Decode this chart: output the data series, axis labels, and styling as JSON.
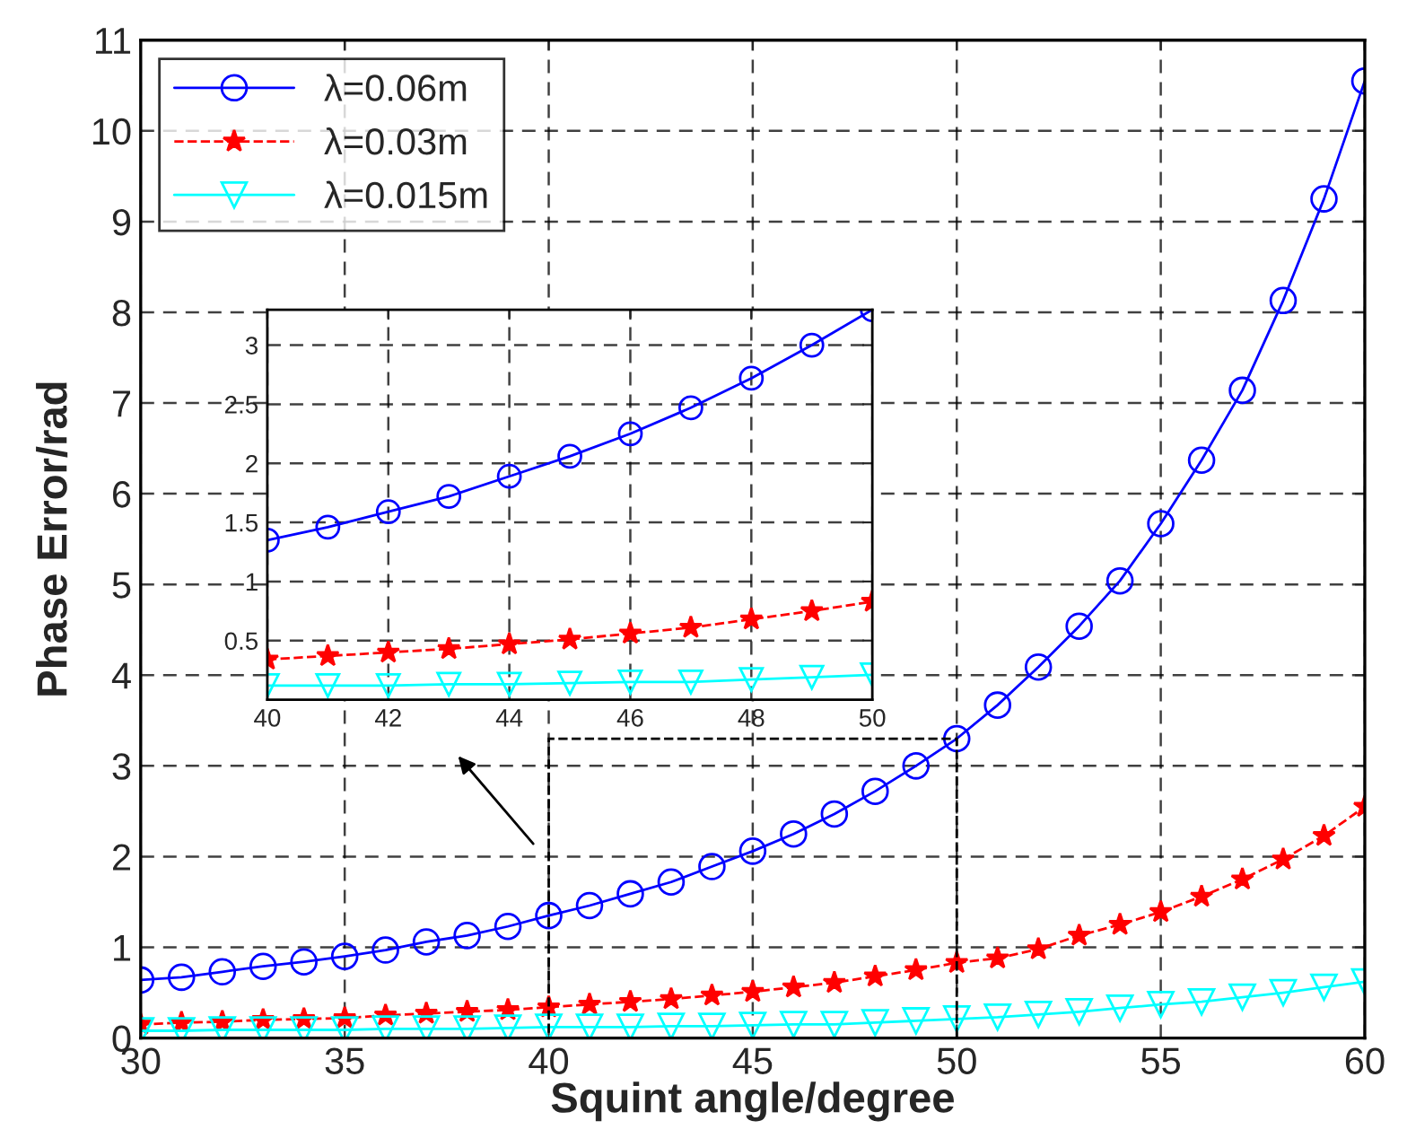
{
  "chart_data": [
    {
      "type": "line",
      "xlabel": "Squint angle/degree",
      "ylabel": "Phase Error/rad",
      "x": [
        30,
        31,
        32,
        33,
        34,
        35,
        36,
        37,
        38,
        39,
        40,
        41,
        42,
        43,
        44,
        45,
        46,
        47,
        48,
        49,
        50,
        51,
        52,
        53,
        54,
        55,
        56,
        57,
        58,
        59,
        60
      ],
      "series": [
        {
          "name": "λ=0.06m",
          "color": "#0000ff",
          "marker": "circle",
          "line_style": "solid",
          "values": [
            0.64,
            0.67,
            0.73,
            0.79,
            0.84,
            0.9,
            0.97,
            1.06,
            1.13,
            1.23,
            1.35,
            1.46,
            1.59,
            1.72,
            1.89,
            2.06,
            2.25,
            2.47,
            2.72,
            3.0,
            3.3,
            3.67,
            4.09,
            4.54,
            5.04,
            5.67,
            6.37,
            7.14,
            8.13,
            9.25,
            10.55
          ]
        },
        {
          "name": "λ=0.03m",
          "color": "#ff0000",
          "marker": "star",
          "line_style": "dashed",
          "values": [
            0.15,
            0.17,
            0.18,
            0.2,
            0.21,
            0.22,
            0.25,
            0.27,
            0.29,
            0.31,
            0.34,
            0.37,
            0.4,
            0.43,
            0.47,
            0.51,
            0.56,
            0.61,
            0.68,
            0.75,
            0.83,
            0.88,
            0.98,
            1.13,
            1.25,
            1.39,
            1.56,
            1.75,
            1.97,
            2.23,
            2.55
          ]
        },
        {
          "name": "λ=0.015m",
          "color": "#00ffff",
          "marker": "triangle",
          "line_style": "solid",
          "values": [
            0.08,
            0.08,
            0.09,
            0.09,
            0.09,
            0.09,
            0.1,
            0.1,
            0.1,
            0.11,
            0.12,
            0.12,
            0.12,
            0.13,
            0.13,
            0.14,
            0.15,
            0.15,
            0.17,
            0.19,
            0.21,
            0.23,
            0.26,
            0.29,
            0.33,
            0.37,
            0.4,
            0.45,
            0.5,
            0.56,
            0.62
          ]
        }
      ],
      "xlim": [
        30,
        60
      ],
      "xticks": [
        30,
        35,
        40,
        45,
        50,
        55,
        60
      ],
      "ylim": [
        0,
        11
      ],
      "yticks": [
        0,
        1,
        2,
        3,
        4,
        5,
        6,
        7,
        8,
        9,
        10,
        11
      ],
      "grid": true,
      "legend": "top left"
    },
    {
      "type": "line",
      "x": [
        40,
        41,
        42,
        43,
        44,
        45,
        46,
        47,
        48,
        49,
        50
      ],
      "series": [
        {
          "color": "#0000ff",
          "marker": "circle",
          "line_style": "solid",
          "values": [
            1.35,
            1.46,
            1.59,
            1.72,
            1.89,
            2.06,
            2.25,
            2.47,
            2.72,
            3.0,
            3.3
          ]
        },
        {
          "color": "#ff0000",
          "marker": "star",
          "line_style": "dashed",
          "values": [
            0.34,
            0.37,
            0.4,
            0.43,
            0.47,
            0.51,
            0.56,
            0.61,
            0.68,
            0.75,
            0.83
          ]
        },
        {
          "color": "#00ffff",
          "marker": "triangle",
          "line_style": "solid",
          "values": [
            0.12,
            0.12,
            0.12,
            0.13,
            0.13,
            0.14,
            0.15,
            0.15,
            0.17,
            0.19,
            0.21
          ]
        }
      ],
      "xlim": [
        40,
        50
      ],
      "xticks": [
        40,
        42,
        44,
        46,
        48,
        50
      ],
      "ylim": [
        0,
        3.3
      ],
      "yticks": [
        0.5,
        1,
        1.5,
        2,
        2.5,
        3
      ],
      "grid": true
    }
  ]
}
